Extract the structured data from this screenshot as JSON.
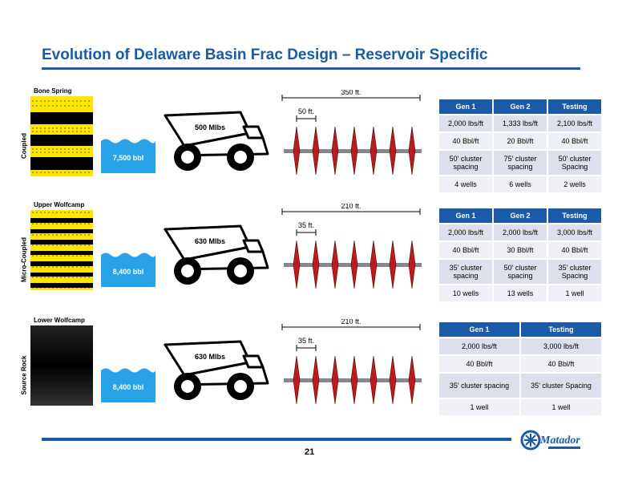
{
  "title": "Evolution of Delaware Basin Frac Design – Reservoir Specific",
  "page_number": "21",
  "logo_text": "Matador",
  "colors": {
    "accent": "#1b5aa6",
    "water": "#29a3e8",
    "stage_red": "#b81c1c",
    "core_yellow": "#ffe600"
  },
  "rows": [
    {
      "side_label": "Coupled",
      "core_label": "Bone Spring",
      "core_style": "coupled",
      "water": "7,500 bbl",
      "proppant": "500 Mlbs",
      "total_spacing": "350 ft.",
      "cluster_spacing": "50 ft.",
      "stage_count": 7,
      "table": {
        "headers": [
          "Gen 1",
          "Gen 2",
          "Testing"
        ],
        "rows": [
          [
            "2,000 lbs/ft",
            "1,333 lbs/ft",
            "2,100 lbs/ft"
          ],
          [
            "40 Bbl/ft",
            "20 Bbl/ft",
            "40 Bbl/ft"
          ],
          [
            "50' cluster spacing",
            "75' cluster spacing",
            "50' cluster Spacing"
          ],
          [
            "4 wells",
            "6 wells",
            "2 wells"
          ]
        ]
      }
    },
    {
      "side_label": "Micro-Coupled",
      "core_label": "Upper Wolfcamp",
      "core_style": "micro",
      "water": "8,400 bbl",
      "proppant": "630 Mlbs",
      "total_spacing": "210 ft.",
      "cluster_spacing": "35 ft.",
      "stage_count": 7,
      "table": {
        "headers": [
          "Gen 1",
          "Gen 2",
          "Testing"
        ],
        "rows": [
          [
            "2,000 lbs/ft",
            "2,000 lbs/ft",
            "3,000 lbs/ft"
          ],
          [
            "40 Bbl/ft",
            "30 Bbl/ft",
            "40 Bbl/ft"
          ],
          [
            "35' cluster spacing",
            "50' cluster spacing",
            "35' cluster Spacing"
          ],
          [
            "10 wells",
            "13 wells",
            "1 well"
          ]
        ]
      }
    },
    {
      "side_label": "Source Rock",
      "core_label": "Lower Wolfcamp",
      "core_style": "source",
      "water": "8,400 bbl",
      "proppant": "630 Mlbs",
      "total_spacing": "210 ft.",
      "cluster_spacing": "35 ft.",
      "stage_count": 7,
      "table": {
        "headers": [
          "Gen 1",
          "Testing"
        ],
        "rows": [
          [
            "2,000 lbs/ft",
            "3,000 lbs/ft"
          ],
          [
            "40 Bbl/ft",
            "40 Bbl/ft"
          ],
          [
            "35' cluster spacing",
            "35' cluster Spacing"
          ],
          [
            "1 well",
            "1 well"
          ]
        ]
      }
    }
  ]
}
